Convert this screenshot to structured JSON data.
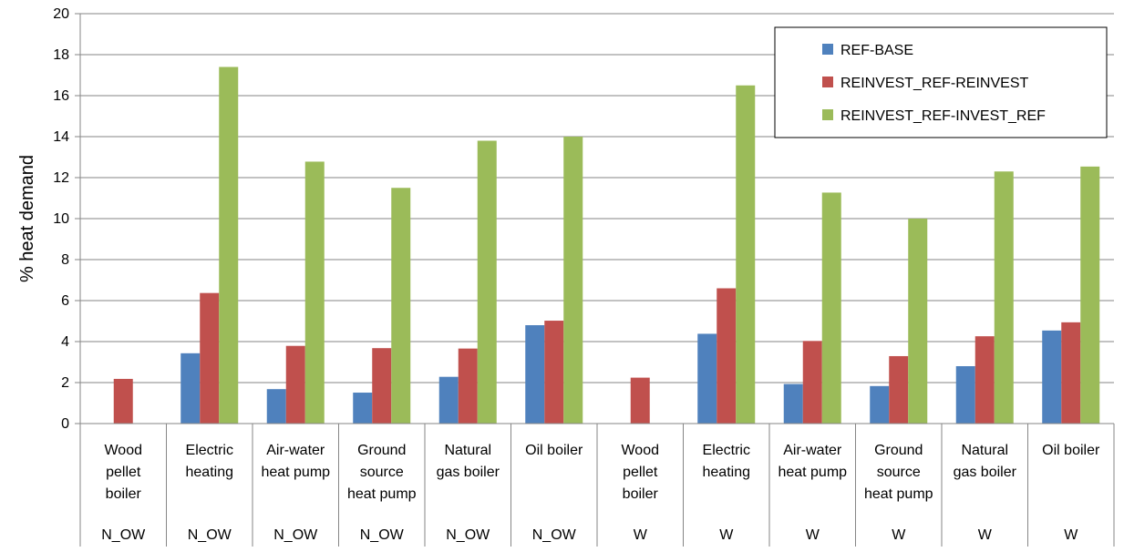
{
  "chart_data": {
    "type": "bar",
    "title": "",
    "xlabel": "",
    "ylabel": "% heat demand",
    "ylim": [
      0,
      20
    ],
    "yticks": [
      0,
      2,
      4,
      6,
      8,
      10,
      12,
      14,
      16,
      18,
      20
    ],
    "grid": true,
    "legend_position": "top-right",
    "categories": [
      {
        "label": [
          "Wood",
          "pellet",
          "boiler"
        ],
        "group": "N_OW"
      },
      {
        "label": [
          "Electric",
          "heating"
        ],
        "group": "N_OW"
      },
      {
        "label": [
          "Air-water",
          "heat pump"
        ],
        "group": "N_OW"
      },
      {
        "label": [
          "Ground",
          "source",
          "heat pump"
        ],
        "group": "N_OW"
      },
      {
        "label": [
          "Natural",
          "gas boiler"
        ],
        "group": "N_OW"
      },
      {
        "label": [
          "Oil boiler"
        ],
        "group": "N_OW"
      },
      {
        "label": [
          "Wood",
          "pellet",
          "boiler"
        ],
        "group": "W"
      },
      {
        "label": [
          "Electric",
          "heating"
        ],
        "group": "W"
      },
      {
        "label": [
          "Air-water",
          "heat pump"
        ],
        "group": "W"
      },
      {
        "label": [
          "Ground",
          "source",
          "heat pump"
        ],
        "group": "W"
      },
      {
        "label": [
          "Natural",
          "gas boiler"
        ],
        "group": "W"
      },
      {
        "label": [
          "Oil boiler"
        ],
        "group": "W"
      }
    ],
    "series": [
      {
        "name": "REF-BASE",
        "color": "#4F81BD",
        "values": [
          0,
          3.43,
          1.68,
          1.51,
          2.28,
          4.8,
          0,
          4.38,
          1.93,
          1.83,
          2.8,
          4.54
        ]
      },
      {
        "name": "REINVEST_REF-REINVEST",
        "color": "#C0504D",
        "values": [
          2.18,
          6.37,
          3.79,
          3.68,
          3.66,
          5.02,
          2.24,
          6.6,
          4.03,
          3.29,
          4.26,
          4.94
        ]
      },
      {
        "name": "REINVEST_REF-INVEST_REF",
        "color": "#9BBB59",
        "values": [
          0,
          17.4,
          12.78,
          11.5,
          13.8,
          14.0,
          0,
          16.5,
          11.27,
          10.0,
          12.3,
          12.54
        ]
      }
    ]
  }
}
